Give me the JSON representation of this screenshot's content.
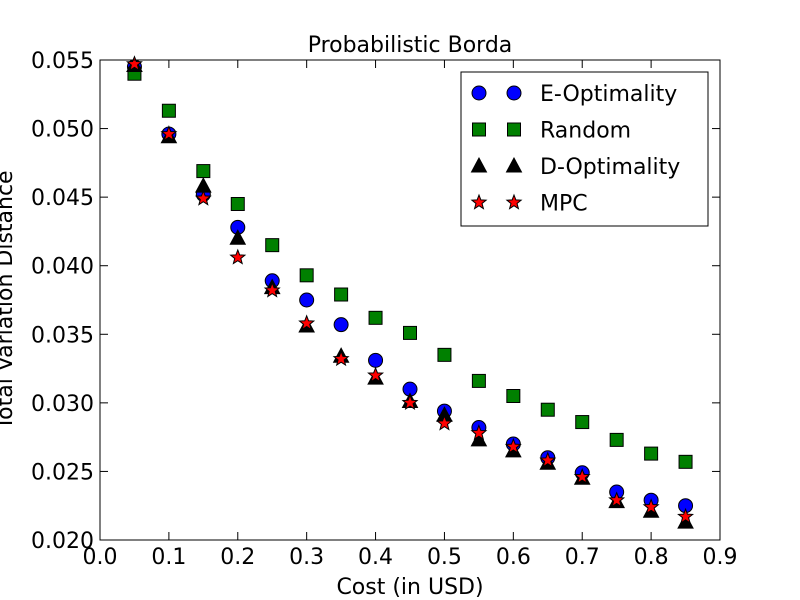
{
  "chart_data": {
    "type": "scatter",
    "title": "Probabilistic Borda",
    "xlabel": "Cost (in USD)",
    "ylabel": "Total Variation Distance",
    "xlim": [
      0.0,
      0.9
    ],
    "ylim": [
      0.02,
      0.055
    ],
    "x_ticks": [
      0.0,
      0.1,
      0.2,
      0.3,
      0.4,
      0.5,
      0.6,
      0.7,
      0.8,
      0.9
    ],
    "x_tick_labels": [
      "0.0",
      "0.1",
      "0.2",
      "0.3",
      "0.4",
      "0.5",
      "0.6",
      "0.7",
      "0.8",
      "0.9"
    ],
    "y_ticks": [
      0.02,
      0.025,
      0.03,
      0.035,
      0.04,
      0.045,
      0.05,
      0.055
    ],
    "y_tick_labels": [
      "0.020",
      "0.025",
      "0.030",
      "0.035",
      "0.040",
      "0.045",
      "0.050",
      "0.055"
    ],
    "grid": false,
    "legend_position": "top-right",
    "x": [
      0.05,
      0.1,
      0.15,
      0.2,
      0.25,
      0.3,
      0.35,
      0.4,
      0.45,
      0.5,
      0.55,
      0.6,
      0.65,
      0.7,
      0.75,
      0.8,
      0.85
    ],
    "series": [
      {
        "name": "E-Optimality",
        "marker": "circle",
        "color": "#0000ff",
        "values": [
          0.0545,
          0.0496,
          0.0452,
          0.0428,
          0.0389,
          0.0375,
          0.0357,
          0.0331,
          0.031,
          0.0294,
          0.0282,
          0.027,
          0.026,
          0.0249,
          0.0235,
          0.0229,
          0.0225
        ]
      },
      {
        "name": "Random",
        "marker": "square",
        "color": "#008000",
        "values": [
          0.054,
          0.0513,
          0.0469,
          0.0445,
          0.0415,
          0.0393,
          0.0379,
          0.0362,
          0.0351,
          0.0335,
          0.0316,
          0.0305,
          0.0295,
          0.0286,
          0.0273,
          0.0263,
          0.0257
        ]
      },
      {
        "name": "D-Optimality",
        "marker": "triangle",
        "color": "#000000",
        "values": [
          0.0546,
          0.0494,
          0.0458,
          0.042,
          0.0384,
          0.0356,
          0.0334,
          0.0318,
          0.0301,
          0.0291,
          0.0273,
          0.0265,
          0.0256,
          0.0245,
          0.0228,
          0.0221,
          0.0213
        ]
      },
      {
        "name": "MPC",
        "marker": "star",
        "color": "#ff0000",
        "values": [
          0.0547,
          0.0496,
          0.0449,
          0.0406,
          0.0382,
          0.0358,
          0.0332,
          0.032,
          0.03,
          0.0285,
          0.0278,
          0.0268,
          0.0258,
          0.0246,
          0.0229,
          0.0224,
          0.0217
        ]
      }
    ]
  }
}
